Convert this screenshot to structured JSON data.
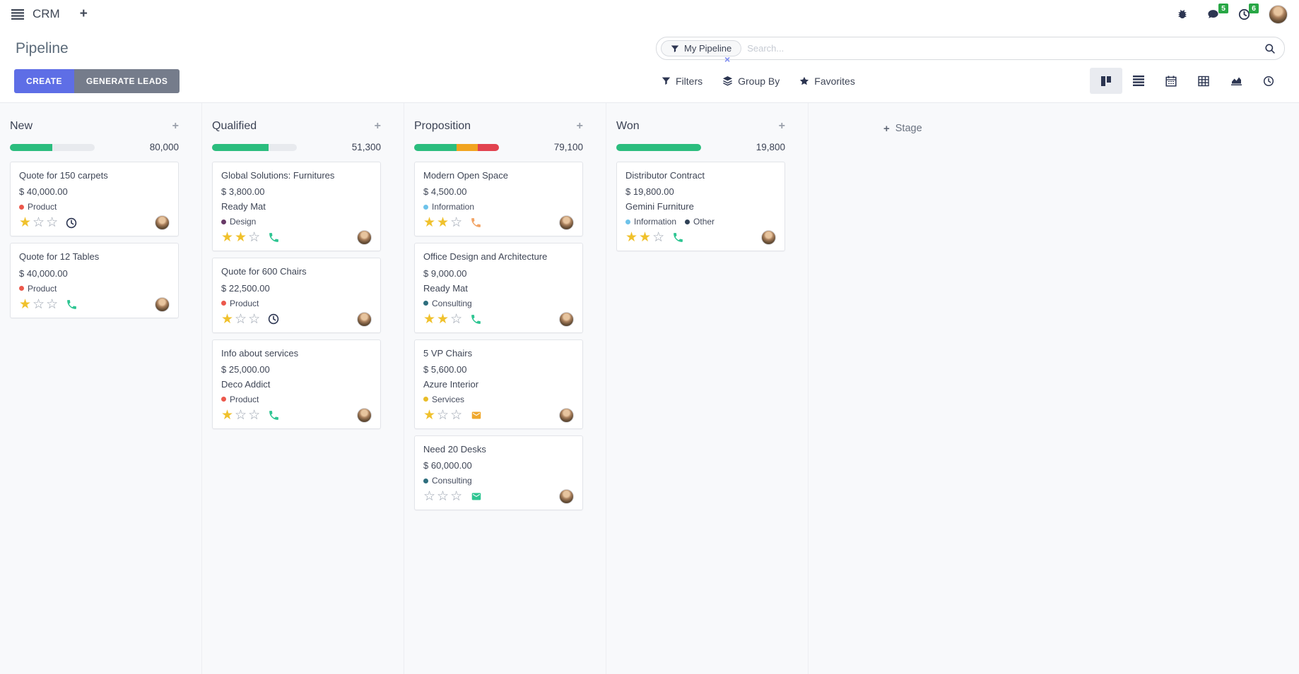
{
  "glyphs": {
    "plus": "+",
    "facet_remove": "×",
    "star_filled": "★",
    "star_empty": "☆"
  },
  "navbar": {
    "app_name": "CRM",
    "messages_badge": "5",
    "activities_badge": "6"
  },
  "control_panel": {
    "title": "Pipeline",
    "create_label": "CREATE",
    "generate_leads_label": "GENERATE LEADS",
    "search": {
      "facet_label": "My Pipeline",
      "placeholder": "Search..."
    },
    "filters_label": "Filters",
    "group_by_label": "Group By",
    "favorites_label": "Favorites",
    "active_view": "kanban",
    "views": [
      "kanban",
      "list",
      "calendar",
      "pivot",
      "graph",
      "activity"
    ]
  },
  "board": {
    "add_stage_label": "Stage",
    "progress_colors": {
      "success": "#2bbd7e",
      "warning": "#f1a420",
      "danger": "#e2434f"
    },
    "columns": [
      {
        "name": "New",
        "total": "80,000",
        "progress": [
          {
            "state": "success",
            "pct": 50
          }
        ],
        "cards": [
          {
            "title": "Quote for 150 carpets",
            "amount": "$ 40,000.00",
            "partner": null,
            "tags": [
              {
                "label": "Product",
                "color": "#ec584c"
              }
            ],
            "stars": 1,
            "activity": {
              "icon": "clock",
              "color": "#2c3551"
            }
          },
          {
            "title": "Quote for 12 Tables",
            "amount": "$ 40,000.00",
            "partner": null,
            "tags": [
              {
                "label": "Product",
                "color": "#ec584c"
              }
            ],
            "stars": 1,
            "activity": {
              "icon": "phone",
              "color": "#2ec592"
            }
          }
        ]
      },
      {
        "name": "Qualified",
        "total": "51,300",
        "progress": [
          {
            "state": "success",
            "pct": 67
          }
        ],
        "cards": [
          {
            "title": "Global Solutions: Furnitures",
            "amount": "$ 3,800.00",
            "partner": "Ready Mat",
            "tags": [
              {
                "label": "Design",
                "color": "#683a67"
              }
            ],
            "stars": 2,
            "activity": {
              "icon": "phone",
              "color": "#2ec592"
            }
          },
          {
            "title": "Quote for 600 Chairs",
            "amount": "$ 22,500.00",
            "partner": null,
            "tags": [
              {
                "label": "Product",
                "color": "#ec584c"
              }
            ],
            "stars": 1,
            "activity": {
              "icon": "clock",
              "color": "#2c3551"
            }
          },
          {
            "title": "Info about services",
            "amount": "$ 25,000.00",
            "partner": "Deco Addict",
            "tags": [
              {
                "label": "Product",
                "color": "#ec584c"
              }
            ],
            "stars": 1,
            "activity": {
              "icon": "phone",
              "color": "#2ec592"
            }
          }
        ]
      },
      {
        "name": "Proposition",
        "total": "79,100",
        "progress": [
          {
            "state": "success",
            "pct": 50
          },
          {
            "state": "warning",
            "pct": 25
          },
          {
            "state": "danger",
            "pct": 25
          }
        ],
        "cards": [
          {
            "title": "Modern Open Space",
            "amount": "$ 4,500.00",
            "partner": null,
            "tags": [
              {
                "label": "Information",
                "color": "#6ec3ea"
              }
            ],
            "stars": 2,
            "activity": {
              "icon": "phone",
              "color": "#f2a466"
            }
          },
          {
            "title": "Office Design and Architecture",
            "amount": "$ 9,000.00",
            "partner": "Ready Mat",
            "tags": [
              {
                "label": "Consulting",
                "color": "#2e6e7e"
              }
            ],
            "stars": 2,
            "activity": {
              "icon": "phone",
              "color": "#2ec592"
            }
          },
          {
            "title": "5 VP Chairs",
            "amount": "$ 5,600.00",
            "partner": "Azure Interior",
            "tags": [
              {
                "label": "Services",
                "color": "#e9bd29"
              }
            ],
            "stars": 1,
            "activity": {
              "icon": "envelope",
              "color": "#efa82d"
            }
          },
          {
            "title": "Need 20 Desks",
            "amount": "$ 60,000.00",
            "partner": null,
            "tags": [
              {
                "label": "Consulting",
                "color": "#2e6e7e"
              }
            ],
            "stars": 0,
            "activity": {
              "icon": "envelope",
              "color": "#2ec592"
            }
          }
        ]
      },
      {
        "name": "Won",
        "total": "19,800",
        "progress": [
          {
            "state": "success",
            "pct": 100
          }
        ],
        "cards": [
          {
            "title": "Distributor Contract",
            "amount": "$ 19,800.00",
            "partner": "Gemini Furniture",
            "tags": [
              {
                "label": "Information",
                "color": "#6ec3ea"
              },
              {
                "label": "Other",
                "color": "#2f4156"
              }
            ],
            "stars": 2,
            "activity": {
              "icon": "phone",
              "color": "#2ec592"
            }
          }
        ]
      }
    ]
  }
}
